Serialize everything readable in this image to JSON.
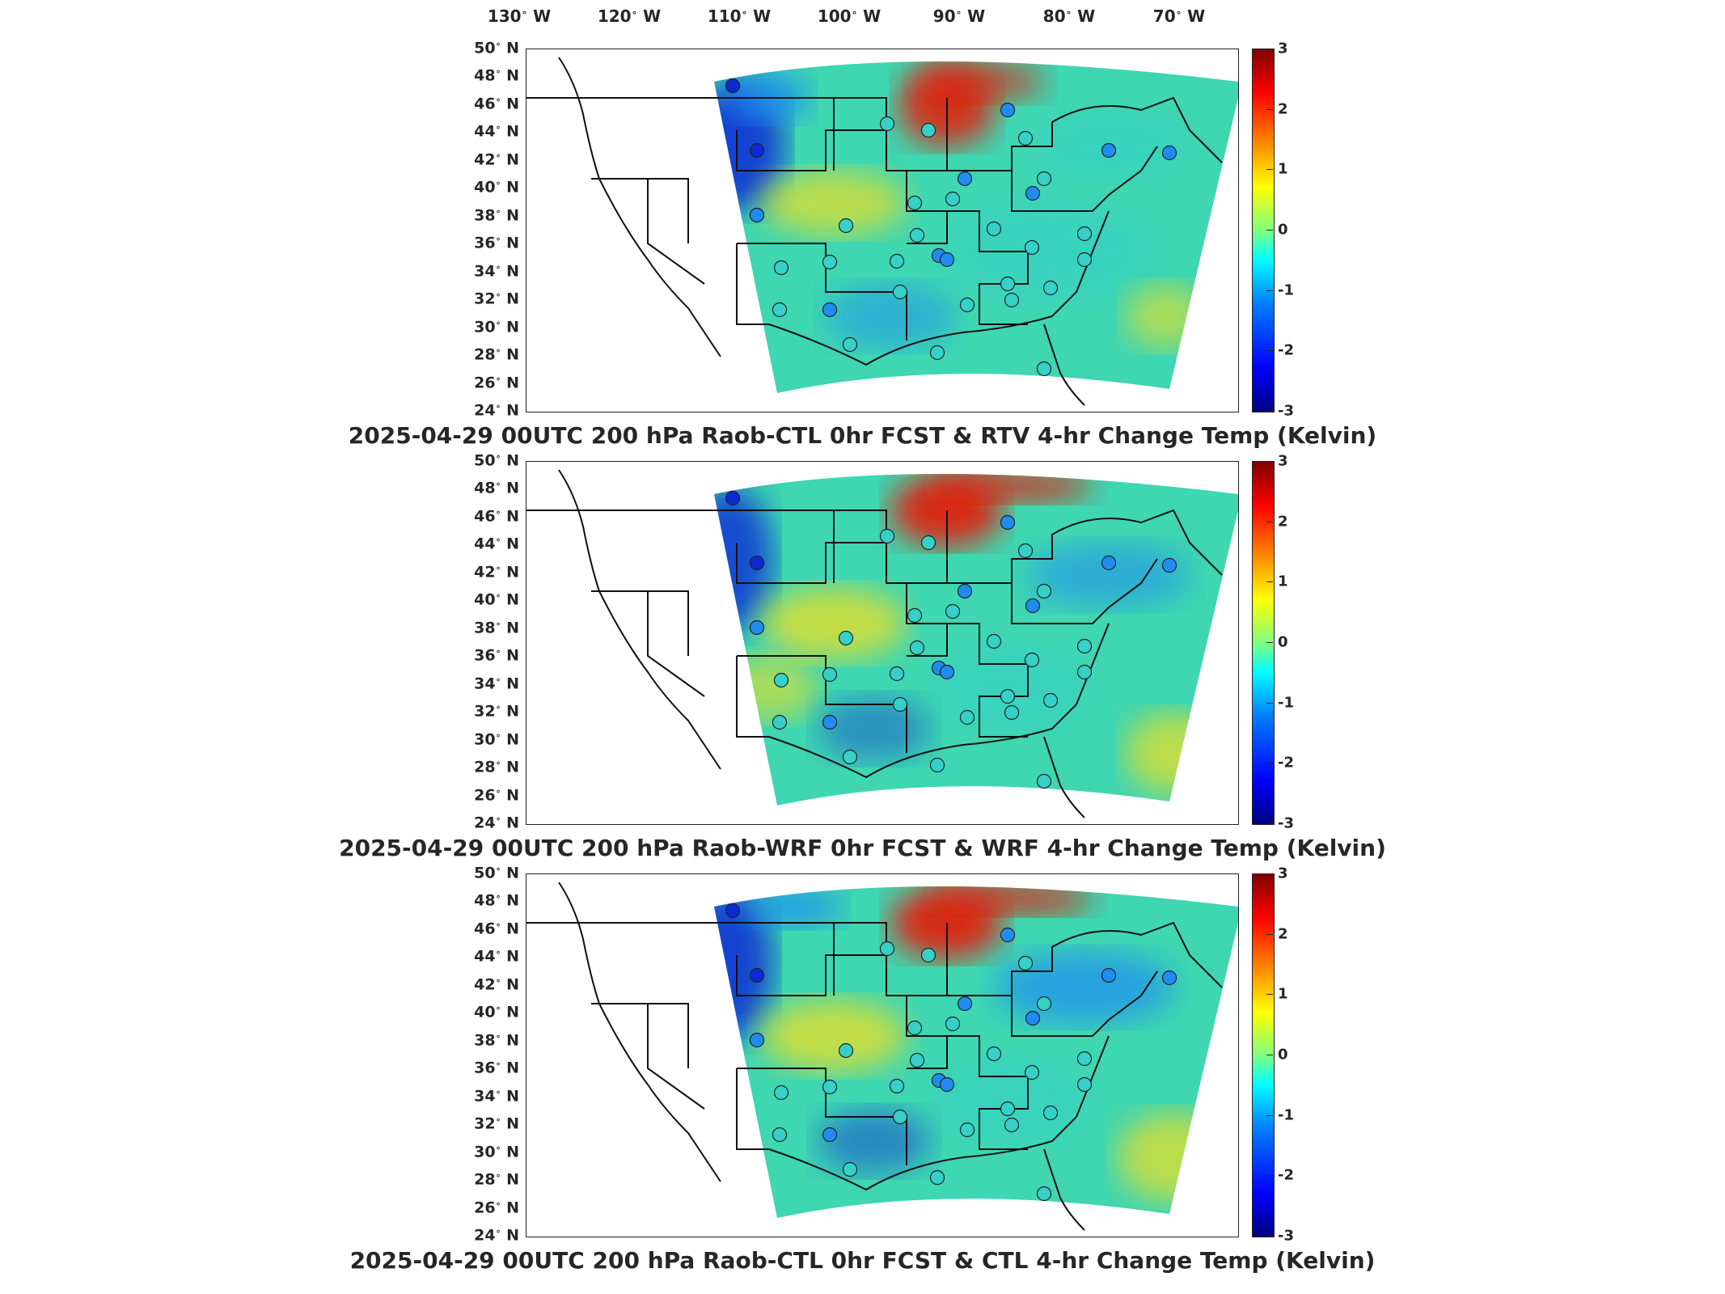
{
  "longitude_labels": [
    {
      "deg": "130",
      "dir": "W"
    },
    {
      "deg": "120",
      "dir": "W"
    },
    {
      "deg": "110",
      "dir": "W"
    },
    {
      "deg": "100",
      "dir": "W"
    },
    {
      "deg": "90",
      "dir": "W"
    },
    {
      "deg": "80",
      "dir": "W"
    },
    {
      "deg": "70",
      "dir": "W"
    }
  ],
  "latitude_labels": [
    {
      "deg": "50",
      "dir": "N"
    },
    {
      "deg": "48",
      "dir": "N"
    },
    {
      "deg": "46",
      "dir": "N"
    },
    {
      "deg": "44",
      "dir": "N"
    },
    {
      "deg": "42",
      "dir": "N"
    },
    {
      "deg": "40",
      "dir": "N"
    },
    {
      "deg": "38",
      "dir": "N"
    },
    {
      "deg": "36",
      "dir": "N"
    },
    {
      "deg": "34",
      "dir": "N"
    },
    {
      "deg": "32",
      "dir": "N"
    },
    {
      "deg": "30",
      "dir": "N"
    },
    {
      "deg": "28",
      "dir": "N"
    },
    {
      "deg": "26",
      "dir": "N"
    },
    {
      "deg": "24",
      "dir": "N"
    }
  ],
  "colorbar": {
    "ticks": [
      "3",
      "2",
      "1",
      "0",
      "-1",
      "-2",
      "-3"
    ],
    "range": [
      -3,
      3
    ],
    "colormap": "jet"
  },
  "panels": [
    {
      "title": "2025-04-29 00UTC 200 hPa Raob-CTL 0hr FCST & RTV 4-hr Change Temp (Kelvin)"
    },
    {
      "title": "2025-04-29 00UTC 200 hPa Raob-WRF 0hr FCST & WRF 4-hr Change Temp (Kelvin)"
    },
    {
      "title": "2025-04-29 00UTC 200 hPa Raob-CTL 0hr FCST & CTL 4-hr Change Temp (Kelvin)"
    }
  ],
  "colors": {
    "strong_cool": "#0a2ad6",
    "cool": "#1f8cf2",
    "neutral": "#35d0c8",
    "warm": "#f0e020",
    "hot": "#e02010",
    "land_outline": "#111111"
  }
}
